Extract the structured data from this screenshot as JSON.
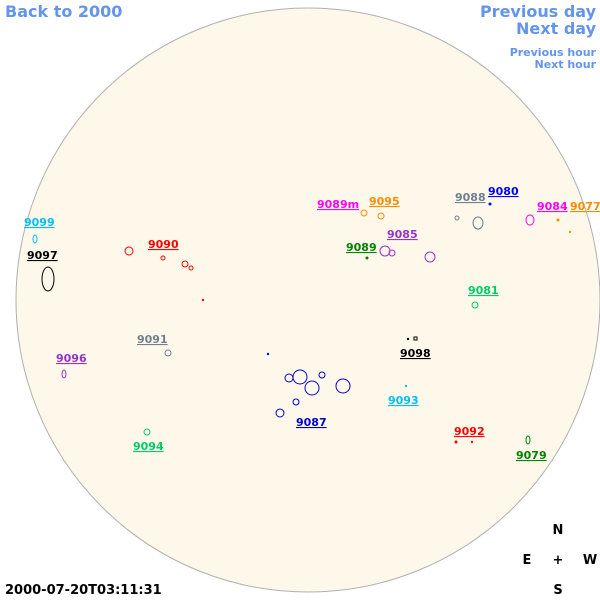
{
  "links": {
    "back": "Back to 2000",
    "previous_day": "Previous day",
    "next_day": "Next day",
    "previous_hour": "Previous hour",
    "next_hour": "Next hour"
  },
  "regions": [
    {
      "label": "9099",
      "color": "#00bfff"
    },
    {
      "label": "9097",
      "color": "#000000"
    },
    {
      "label": "9090",
      "color": "#ff0000"
    },
    {
      "label": "9089m",
      "color": "#ff00ff"
    },
    {
      "label": "9095",
      "color": "#ff8c00"
    },
    {
      "label": "9088",
      "color": "#708090"
    },
    {
      "label": "9080",
      "color": "#0000ff"
    },
    {
      "label": "9084",
      "color": "#ff00ff"
    },
    {
      "label": "9077",
      "color": "#ff8c00"
    },
    {
      "label": "9085",
      "color": "#9932cc"
    },
    {
      "label": "9089",
      "color": "#008000"
    },
    {
      "label": "9081",
      "color": "#00cc66"
    },
    {
      "label": "9091",
      "color": "#708090"
    },
    {
      "label": "9096",
      "color": "#9932cc"
    },
    {
      "label": "9098",
      "color": "#000000"
    },
    {
      "label": "9093",
      "color": "#00bfff"
    },
    {
      "label": "9087",
      "color": "#0000cd"
    },
    {
      "label": "9092",
      "color": "#ff0000"
    },
    {
      "label": "9094",
      "color": "#00cc66"
    },
    {
      "label": "9079",
      "color": "#008000"
    }
  ],
  "timestamp": "2000-07-20T03:11:31",
  "compass": {
    "north": "N",
    "east": "E",
    "center": "+",
    "west": "W",
    "south": "S"
  }
}
